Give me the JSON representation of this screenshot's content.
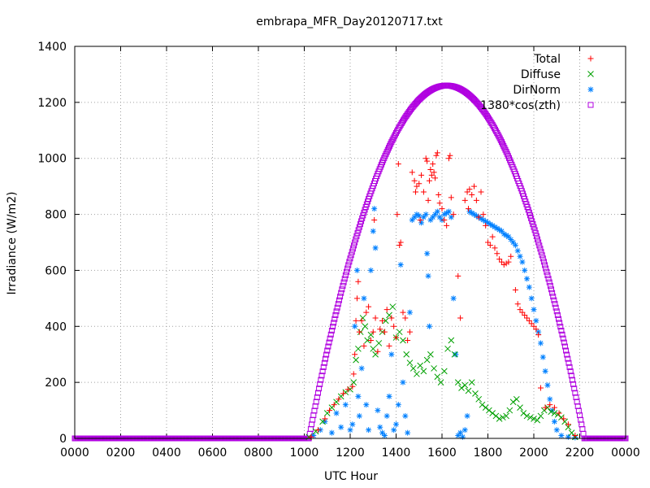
{
  "chart_data": {
    "type": "scatter",
    "title": "embrapa_MFR_Day20120717.txt",
    "xlabel": "UTC Hour",
    "ylabel": "Irradiance (W/m2)",
    "xlim": [
      0,
      24
    ],
    "ylim": [
      0,
      1400
    ],
    "x_ticks": [
      {
        "value": 0,
        "label": "0000"
      },
      {
        "value": 2,
        "label": "0200"
      },
      {
        "value": 4,
        "label": "0400"
      },
      {
        "value": 6,
        "label": "0600"
      },
      {
        "value": 8,
        "label": "0800"
      },
      {
        "value": 10,
        "label": "1000"
      },
      {
        "value": 12,
        "label": "1200"
      },
      {
        "value": 14,
        "label": "1400"
      },
      {
        "value": 16,
        "label": "1600"
      },
      {
        "value": 18,
        "label": "1800"
      },
      {
        "value": 20,
        "label": "2000"
      },
      {
        "value": 22,
        "label": "2200"
      },
      {
        "value": 24,
        "label": "0000"
      }
    ],
    "y_ticks": [
      {
        "value": 0,
        "label": "0"
      },
      {
        "value": 200,
        "label": "200"
      },
      {
        "value": 400,
        "label": "400"
      },
      {
        "value": 600,
        "label": "600"
      },
      {
        "value": 800,
        "label": "800"
      },
      {
        "value": 1000,
        "label": "1000"
      },
      {
        "value": 1200,
        "label": "1200"
      },
      {
        "value": 1400,
        "label": "1400"
      }
    ],
    "grid": true,
    "legend_position": "top-right",
    "series": [
      {
        "name": "Total",
        "color": "#ff0000",
        "marker": "plus",
        "points": [
          [
            10.3,
            5
          ],
          [
            10.6,
            30
          ],
          [
            10.9,
            70
          ],
          [
            11.1,
            100
          ],
          [
            11.3,
            120
          ],
          [
            11.5,
            140
          ],
          [
            11.7,
            160
          ],
          [
            11.9,
            175
          ],
          [
            12.1,
            185
          ],
          [
            12.15,
            230
          ],
          [
            12.2,
            300
          ],
          [
            12.25,
            420
          ],
          [
            12.3,
            500
          ],
          [
            12.35,
            560
          ],
          [
            12.4,
            380
          ],
          [
            12.5,
            420
          ],
          [
            12.6,
            330
          ],
          [
            12.7,
            450
          ],
          [
            12.8,
            470
          ],
          [
            12.9,
            350
          ],
          [
            13.0,
            380
          ],
          [
            13.05,
            780
          ],
          [
            13.1,
            430
          ],
          [
            13.2,
            310
          ],
          [
            13.3,
            390
          ],
          [
            13.4,
            420
          ],
          [
            13.5,
            380
          ],
          [
            13.6,
            460
          ],
          [
            13.7,
            330
          ],
          [
            13.8,
            430
          ],
          [
            13.9,
            400
          ],
          [
            14.0,
            360
          ],
          [
            14.05,
            800
          ],
          [
            14.1,
            980
          ],
          [
            14.15,
            690
          ],
          [
            14.2,
            700
          ],
          [
            14.3,
            450
          ],
          [
            14.4,
            430
          ],
          [
            14.5,
            350
          ],
          [
            14.6,
            380
          ],
          [
            14.7,
            950
          ],
          [
            14.8,
            920
          ],
          [
            14.85,
            880
          ],
          [
            14.9,
            900
          ],
          [
            15.0,
            910
          ],
          [
            15.05,
            780
          ],
          [
            15.1,
            940
          ],
          [
            15.2,
            880
          ],
          [
            15.3,
            1000
          ],
          [
            15.35,
            990
          ],
          [
            15.4,
            850
          ],
          [
            15.45,
            920
          ],
          [
            15.5,
            960
          ],
          [
            15.55,
            940
          ],
          [
            15.6,
            980
          ],
          [
            15.65,
            950
          ],
          [
            15.7,
            930
          ],
          [
            15.75,
            1010
          ],
          [
            15.8,
            1020
          ],
          [
            15.85,
            870
          ],
          [
            15.9,
            840
          ],
          [
            16.0,
            820
          ],
          [
            16.1,
            780
          ],
          [
            16.2,
            760
          ],
          [
            16.3,
            1000
          ],
          [
            16.35,
            1010
          ],
          [
            16.4,
            860
          ],
          [
            16.5,
            800
          ],
          [
            16.7,
            580
          ],
          [
            16.8,
            430
          ],
          [
            17.0,
            850
          ],
          [
            17.1,
            880
          ],
          [
            17.15,
            820
          ],
          [
            17.2,
            890
          ],
          [
            17.3,
            870
          ],
          [
            17.4,
            900
          ],
          [
            17.5,
            850
          ],
          [
            17.6,
            790
          ],
          [
            17.7,
            880
          ],
          [
            17.8,
            800
          ],
          [
            17.9,
            760
          ],
          [
            18.0,
            700
          ],
          [
            18.1,
            690
          ],
          [
            18.2,
            720
          ],
          [
            18.3,
            680
          ],
          [
            18.4,
            660
          ],
          [
            18.5,
            640
          ],
          [
            18.6,
            630
          ],
          [
            18.7,
            620
          ],
          [
            18.8,
            625
          ],
          [
            18.9,
            630
          ],
          [
            19.0,
            650
          ],
          [
            19.2,
            530
          ],
          [
            19.3,
            480
          ],
          [
            19.4,
            460
          ],
          [
            19.5,
            450
          ],
          [
            19.6,
            440
          ],
          [
            19.7,
            430
          ],
          [
            19.8,
            420
          ],
          [
            19.9,
            410
          ],
          [
            20.0,
            400
          ],
          [
            20.1,
            390
          ],
          [
            20.2,
            370
          ],
          [
            20.3,
            180
          ],
          [
            20.5,
            110
          ],
          [
            20.7,
            120
          ],
          [
            20.9,
            110
          ],
          [
            21.1,
            90
          ],
          [
            21.3,
            70
          ],
          [
            21.5,
            50
          ],
          [
            21.8,
            10
          ]
        ]
      },
      {
        "name": "Diffuse",
        "color": "#00a000",
        "marker": "x",
        "points": [
          [
            10.2,
            5
          ],
          [
            10.5,
            25
          ],
          [
            10.8,
            60
          ],
          [
            11.0,
            90
          ],
          [
            11.2,
            110
          ],
          [
            11.4,
            130
          ],
          [
            11.6,
            150
          ],
          [
            11.8,
            165
          ],
          [
            12.0,
            175
          ],
          [
            12.15,
            200
          ],
          [
            12.25,
            280
          ],
          [
            12.35,
            320
          ],
          [
            12.45,
            380
          ],
          [
            12.55,
            430
          ],
          [
            12.65,
            400
          ],
          [
            12.75,
            350
          ],
          [
            12.9,
            370
          ],
          [
            13.0,
            320
          ],
          [
            13.1,
            300
          ],
          [
            13.25,
            340
          ],
          [
            13.4,
            380
          ],
          [
            13.55,
            420
          ],
          [
            13.7,
            440
          ],
          [
            13.85,
            470
          ],
          [
            14.0,
            360
          ],
          [
            14.15,
            380
          ],
          [
            14.3,
            350
          ],
          [
            14.45,
            300
          ],
          [
            14.6,
            270
          ],
          [
            14.75,
            250
          ],
          [
            14.9,
            230
          ],
          [
            15.05,
            260
          ],
          [
            15.2,
            240
          ],
          [
            15.35,
            280
          ],
          [
            15.5,
            300
          ],
          [
            15.65,
            250
          ],
          [
            15.8,
            220
          ],
          [
            15.95,
            200
          ],
          [
            16.1,
            240
          ],
          [
            16.25,
            320
          ],
          [
            16.4,
            350
          ],
          [
            16.55,
            300
          ],
          [
            16.7,
            200
          ],
          [
            16.85,
            180
          ],
          [
            17.0,
            190
          ],
          [
            17.15,
            170
          ],
          [
            17.3,
            200
          ],
          [
            17.45,
            160
          ],
          [
            17.6,
            140
          ],
          [
            17.75,
            120
          ],
          [
            17.9,
            110
          ],
          [
            18.05,
            100
          ],
          [
            18.2,
            90
          ],
          [
            18.35,
            80
          ],
          [
            18.5,
            70
          ],
          [
            18.65,
            75
          ],
          [
            18.8,
            80
          ],
          [
            18.95,
            100
          ],
          [
            19.1,
            130
          ],
          [
            19.25,
            140
          ],
          [
            19.4,
            110
          ],
          [
            19.55,
            90
          ],
          [
            19.7,
            80
          ],
          [
            19.85,
            75
          ],
          [
            20.0,
            70
          ],
          [
            20.15,
            65
          ],
          [
            20.3,
            80
          ],
          [
            20.45,
            100
          ],
          [
            20.6,
            110
          ],
          [
            20.75,
            95
          ],
          [
            20.9,
            90
          ],
          [
            21.05,
            85
          ],
          [
            21.2,
            75
          ],
          [
            21.35,
            60
          ],
          [
            21.5,
            40
          ],
          [
            21.65,
            20
          ],
          [
            21.8,
            5
          ]
        ]
      },
      {
        "name": "DirNorm",
        "color": "#0080ff",
        "marker": "star",
        "points": [
          [
            10.4,
            10
          ],
          [
            10.7,
            30
          ],
          [
            10.9,
            60
          ],
          [
            11.2,
            20
          ],
          [
            11.4,
            90
          ],
          [
            11.6,
            40
          ],
          [
            11.8,
            120
          ],
          [
            12.0,
            30
          ],
          [
            12.1,
            50
          ],
          [
            12.2,
            400
          ],
          [
            12.3,
            600
          ],
          [
            12.35,
            150
          ],
          [
            12.4,
            80
          ],
          [
            12.5,
            250
          ],
          [
            12.6,
            500
          ],
          [
            12.7,
            120
          ],
          [
            12.8,
            30
          ],
          [
            12.9,
            600
          ],
          [
            13.0,
            740
          ],
          [
            13.05,
            820
          ],
          [
            13.1,
            680
          ],
          [
            13.2,
            100
          ],
          [
            13.3,
            40
          ],
          [
            13.4,
            20
          ],
          [
            13.5,
            10
          ],
          [
            13.6,
            80
          ],
          [
            13.7,
            150
          ],
          [
            13.8,
            300
          ],
          [
            13.9,
            30
          ],
          [
            14.0,
            50
          ],
          [
            14.1,
            120
          ],
          [
            14.2,
            620
          ],
          [
            14.3,
            200
          ],
          [
            14.4,
            80
          ],
          [
            14.5,
            20
          ],
          [
            14.6,
            450
          ],
          [
            14.7,
            780
          ],
          [
            14.8,
            790
          ],
          [
            14.9,
            800
          ],
          [
            15.0,
            795
          ],
          [
            15.1,
            770
          ],
          [
            15.2,
            790
          ],
          [
            15.3,
            800
          ],
          [
            15.35,
            660
          ],
          [
            15.4,
            580
          ],
          [
            15.45,
            400
          ],
          [
            15.5,
            780
          ],
          [
            15.6,
            790
          ],
          [
            15.7,
            800
          ],
          [
            15.8,
            810
          ],
          [
            15.9,
            790
          ],
          [
            16.0,
            780
          ],
          [
            16.1,
            800
          ],
          [
            16.2,
            805
          ],
          [
            16.3,
            810
          ],
          [
            16.4,
            790
          ],
          [
            16.5,
            500
          ],
          [
            16.6,
            300
          ],
          [
            16.7,
            10
          ],
          [
            16.8,
            20
          ],
          [
            16.9,
            5
          ],
          [
            17.0,
            30
          ],
          [
            17.1,
            80
          ],
          [
            17.2,
            810
          ],
          [
            17.3,
            805
          ],
          [
            17.4,
            800
          ],
          [
            17.5,
            795
          ],
          [
            17.6,
            790
          ],
          [
            17.7,
            785
          ],
          [
            17.8,
            780
          ],
          [
            17.9,
            775
          ],
          [
            18.0,
            770
          ],
          [
            18.1,
            765
          ],
          [
            18.2,
            760
          ],
          [
            18.3,
            755
          ],
          [
            18.4,
            750
          ],
          [
            18.5,
            745
          ],
          [
            18.6,
            740
          ],
          [
            18.7,
            730
          ],
          [
            18.8,
            725
          ],
          [
            18.9,
            720
          ],
          [
            19.0,
            710
          ],
          [
            19.1,
            700
          ],
          [
            19.2,
            690
          ],
          [
            19.3,
            670
          ],
          [
            19.4,
            650
          ],
          [
            19.5,
            630
          ],
          [
            19.6,
            600
          ],
          [
            19.7,
            570
          ],
          [
            19.8,
            540
          ],
          [
            19.9,
            500
          ],
          [
            20.0,
            460
          ],
          [
            20.1,
            420
          ],
          [
            20.2,
            380
          ],
          [
            20.3,
            340
          ],
          [
            20.4,
            290
          ],
          [
            20.5,
            240
          ],
          [
            20.6,
            190
          ],
          [
            20.7,
            140
          ],
          [
            20.8,
            100
          ],
          [
            20.9,
            60
          ],
          [
            21.0,
            30
          ],
          [
            21.2,
            10
          ],
          [
            21.5,
            5
          ],
          [
            21.8,
            3
          ]
        ]
      },
      {
        "name": "1380*cos(zth)",
        "color": "#b000e0",
        "marker": "square",
        "peak": 1260,
        "peak_hour": 16.2,
        "rise_hour": 10.2,
        "set_hour": 22.2
      }
    ]
  }
}
